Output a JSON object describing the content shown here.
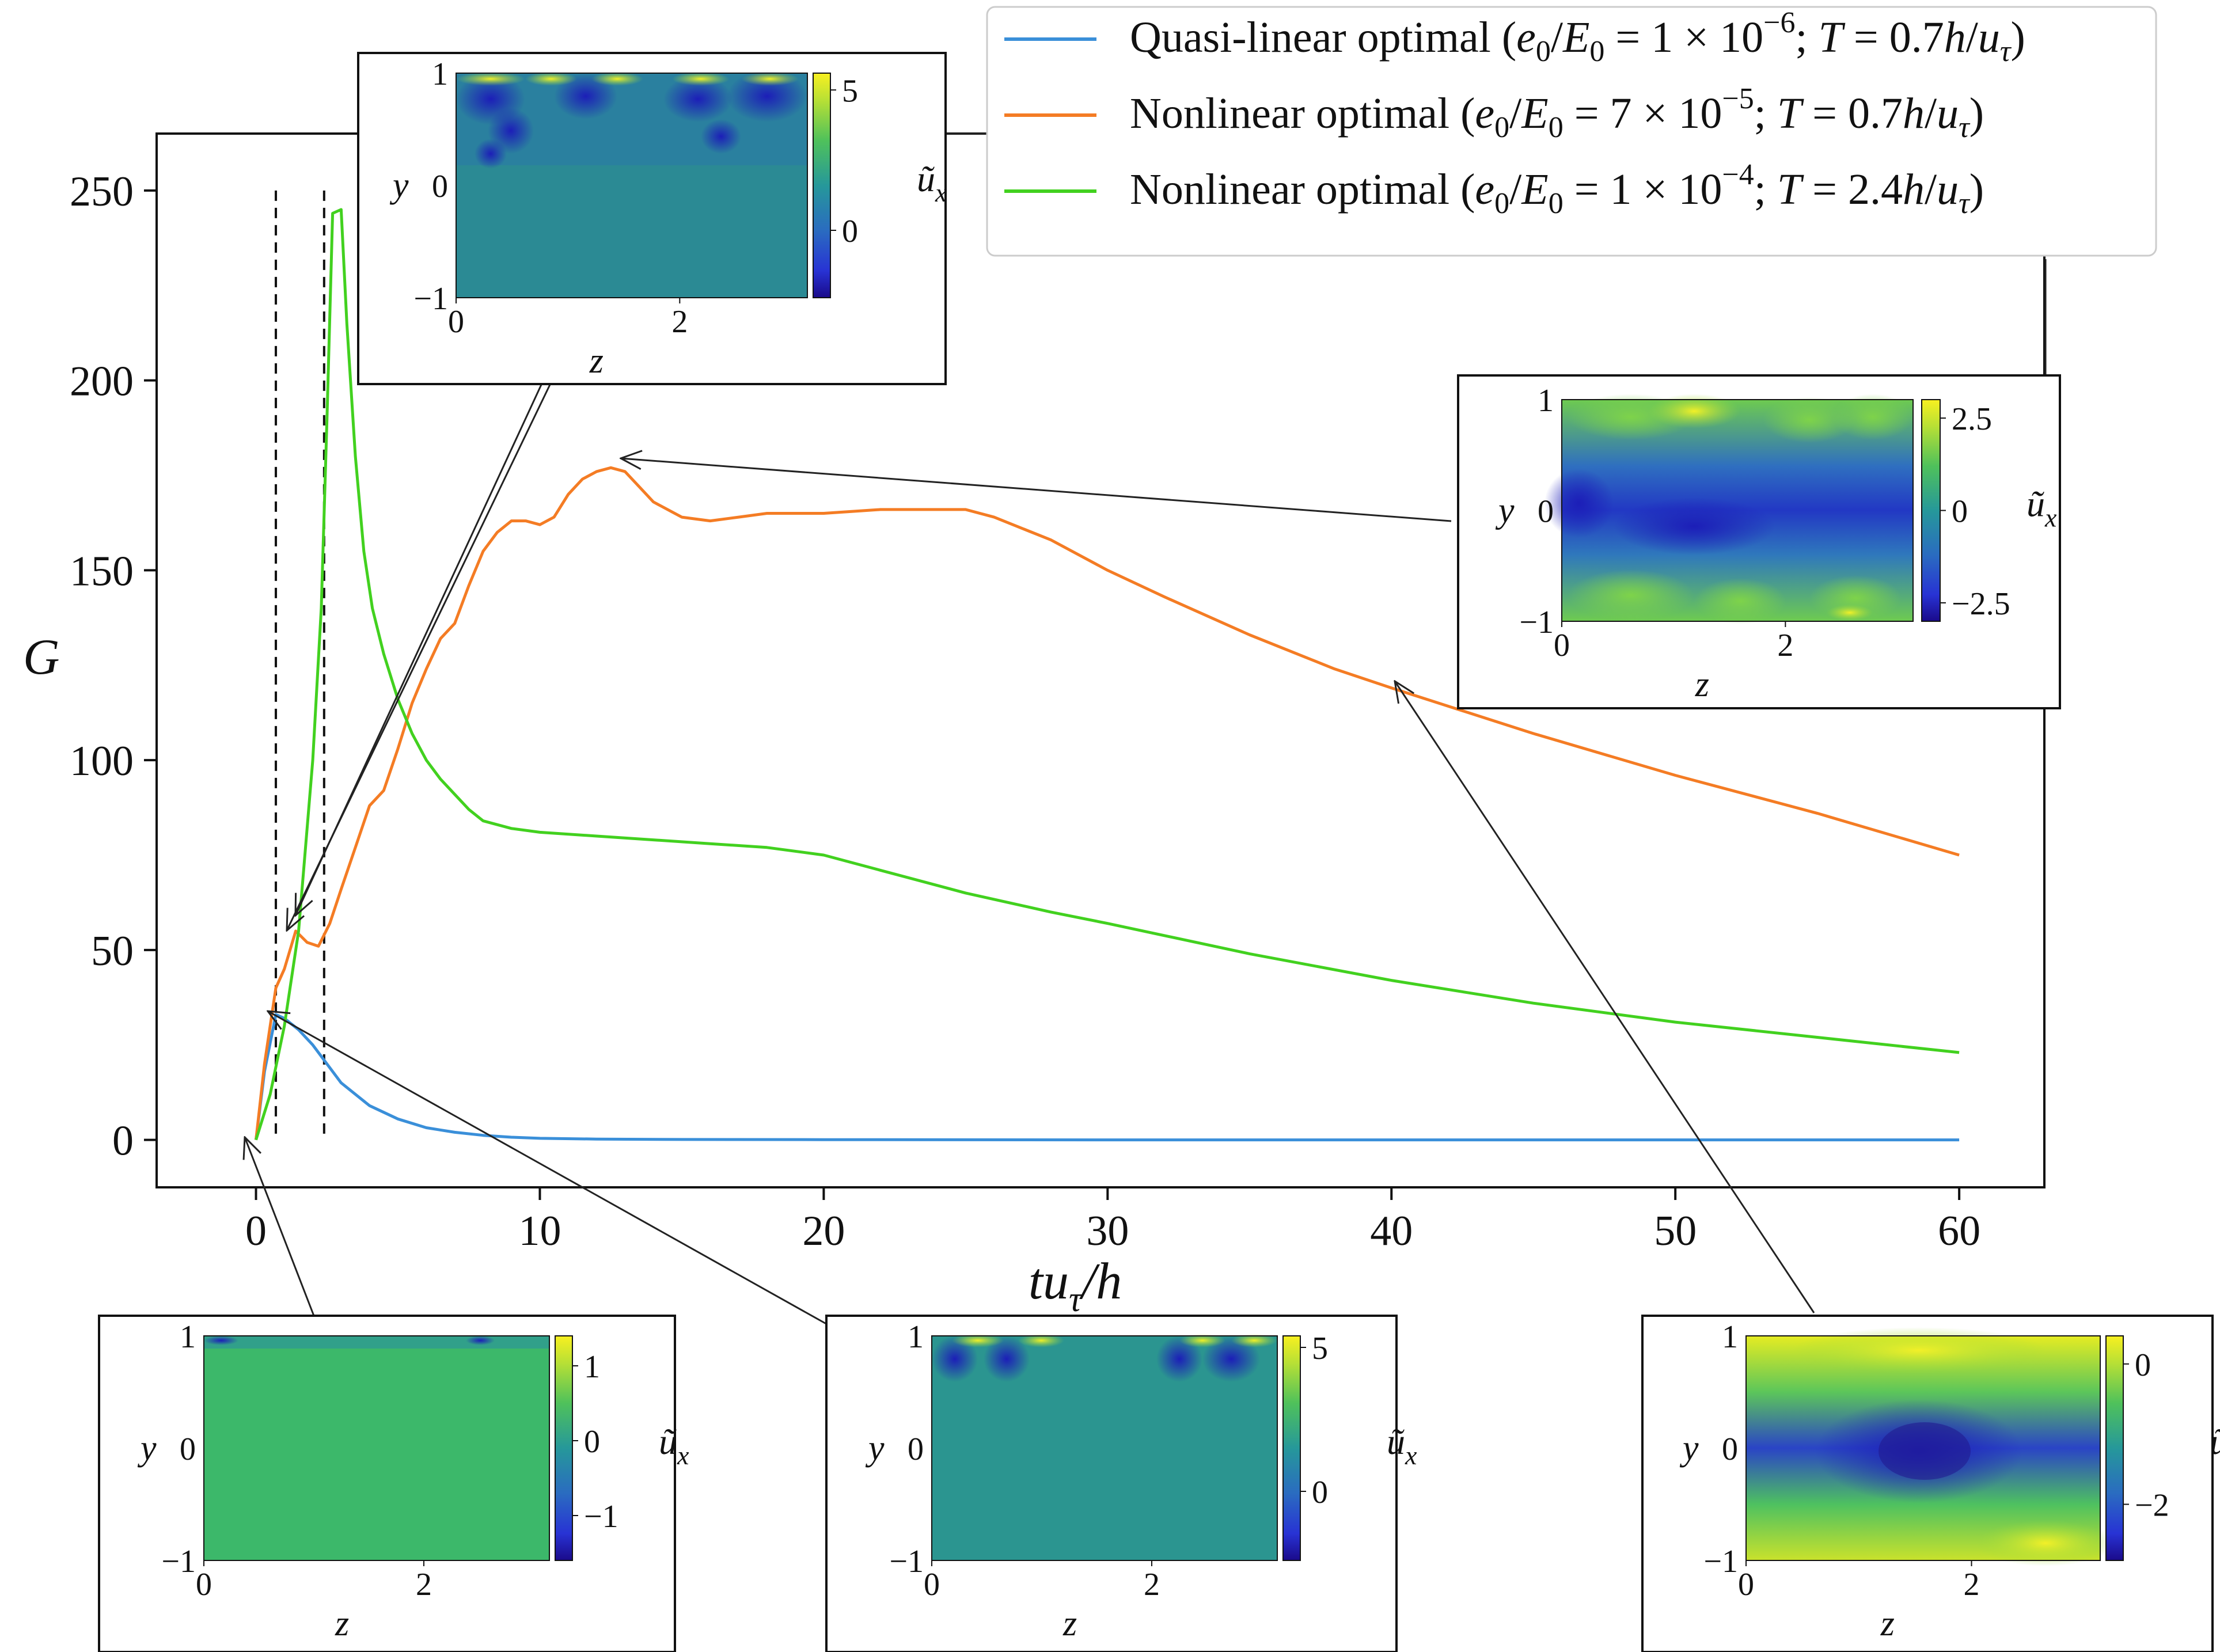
{
  "chart_data": {
    "type": "line",
    "xlabel": "tu_τ/h",
    "ylabel": "G",
    "xlim": [
      -3.5,
      63
    ],
    "ylim": [
      -12.5,
      265
    ],
    "xticks": [
      0,
      10,
      20,
      30,
      40,
      50,
      60
    ],
    "yticks": [
      0,
      50,
      100,
      150,
      200,
      250
    ],
    "grid": false,
    "legend_position": "top-right",
    "series": [
      {
        "name": "Quasi-linear optimal (e0/E0 = 1 × 10^−6; T = 0.7h/uτ)",
        "legend": {
          "pre": "Quasi-linear optimal (",
          "val": "1 × 10",
          "exp": "−6",
          "tval": "0.7"
        },
        "color": "#3a8fd9",
        "x": [
          0,
          0.3,
          0.7,
          1.0,
          1.5,
          2.0,
          2.5,
          3.0,
          4.0,
          5.0,
          6.0,
          7.0,
          8.0,
          9.0,
          10.0,
          12.0,
          15.0,
          20.0,
          30.0,
          40.0,
          50.0,
          60.0
        ],
        "y": [
          0,
          18,
          33,
          32,
          29,
          25,
          20,
          15,
          9,
          5.5,
          3.2,
          2.0,
          1.2,
          0.7,
          0.4,
          0.2,
          0.1,
          0.05,
          0,
          0,
          0,
          0
        ]
      },
      {
        "name": "Nonlinear optimal (e0/E0 = 7 × 10^−5; T = 0.7h/uτ)",
        "legend": {
          "pre": "Nonlinear optimal (",
          "val": "7 × 10",
          "exp": "−5",
          "tval": "0.7"
        },
        "color": "#f47c24",
        "x": [
          0,
          0.3,
          0.7,
          1.0,
          1.4,
          1.8,
          2.2,
          2.6,
          3.0,
          3.5,
          4.0,
          4.5,
          5.0,
          5.5,
          6.0,
          6.5,
          7.0,
          7.5,
          8.0,
          8.5,
          9.0,
          9.5,
          10.0,
          10.5,
          11.0,
          11.5,
          12.0,
          12.5,
          13.0,
          13.5,
          14.0,
          15.0,
          16.0,
          17.0,
          18.0,
          20.0,
          22.0,
          24.0,
          25.0,
          26.0,
          28.0,
          30.0,
          32.0,
          35.0,
          38.0,
          40.0,
          45.0,
          50.0,
          55.0,
          60.0
        ],
        "y": [
          0,
          20,
          40,
          45,
          55,
          52,
          51,
          57,
          66,
          77,
          88,
          92,
          103,
          115,
          124,
          132,
          136,
          146,
          155,
          160,
          163,
          163,
          162,
          164,
          170,
          174,
          176,
          177,
          176,
          172,
          168,
          164,
          163,
          164,
          165,
          165,
          166,
          166,
          166,
          164,
          158,
          150,
          143,
          133,
          124,
          119,
          107,
          96,
          86,
          75
        ]
      },
      {
        "name": "Nonlinear optimal (e0/E0 = 1 × 10^−4; T = 2.4h/uτ)",
        "legend": {
          "pre": "Nonlinear optimal (",
          "val": "1 × 10",
          "exp": "−4",
          "tval": "2.4"
        },
        "color": "#42d11f",
        "x": [
          0,
          0.5,
          1.0,
          1.5,
          2.0,
          2.3,
          2.5,
          2.7,
          3.0,
          3.2,
          3.5,
          3.8,
          4.1,
          4.5,
          5.0,
          5.5,
          6.0,
          6.5,
          7.0,
          7.5,
          8.0,
          9.0,
          10.0,
          12.0,
          14.0,
          16.0,
          18.0,
          20.0,
          22.0,
          25.0,
          28.0,
          30.0,
          35.0,
          40.0,
          45.0,
          50.0,
          55.0,
          60.0
        ],
        "y": [
          0,
          12,
          30,
          55,
          100,
          140,
          190,
          244,
          245,
          215,
          180,
          155,
          140,
          128,
          116,
          107,
          100,
          95,
          91,
          87,
          84,
          82,
          81,
          80,
          79,
          78,
          77,
          75,
          71,
          65,
          60,
          57,
          49,
          42,
          36,
          31,
          27,
          23
        ]
      }
    ],
    "reference_lines": [
      0.7,
      2.4
    ],
    "insets": [
      {
        "panel": "top-left",
        "ylabel": "y",
        "xlabel": "z",
        "cb_label": "ũ_x",
        "yticks": [
          "1",
          "0",
          "−1"
        ],
        "xticks": [
          "0",
          "2"
        ],
        "cbticks": [
          "5",
          "0"
        ],
        "cmap_top": 5.6,
        "cmap_bottom": -2.4
      },
      {
        "panel": "right",
        "ylabel": "y",
        "xlabel": "z",
        "cb_label": "ũ_x",
        "yticks": [
          "1",
          "0",
          "−1"
        ],
        "xticks": [
          "0",
          "2"
        ],
        "cbticks": [
          "2.5",
          "0",
          "−2.5"
        ],
        "cmap_top": 3.0,
        "cmap_bottom": -3.0
      },
      {
        "panel": "bottom-left",
        "ylabel": "y",
        "xlabel": "z",
        "cb_label": "ũ_x",
        "yticks": [
          "1",
          "0",
          "−1"
        ],
        "xticks": [
          "0",
          "2"
        ],
        "cbticks": [
          "1",
          "0",
          "−1"
        ],
        "cmap_top": 1.4,
        "cmap_bottom": -1.6
      },
      {
        "panel": "bottom-middle",
        "ylabel": "y",
        "xlabel": "z",
        "cb_label": "ũ_x",
        "yticks": [
          "1",
          "0",
          "−1"
        ],
        "xticks": [
          "0",
          "2"
        ],
        "cbticks": [
          "5",
          "0"
        ],
        "cmap_top": 5.4,
        "cmap_bottom": -2.4
      },
      {
        "panel": "bottom-right",
        "ylabel": "y",
        "xlabel": "z",
        "cb_label": "ũ_x",
        "yticks": [
          "1",
          "0",
          "−1"
        ],
        "xticks": [
          "0",
          "2"
        ],
        "cbticks": [
          "0",
          "−2"
        ],
        "cmap_top": 0.4,
        "cmap_bottom": -2.8
      }
    ]
  }
}
